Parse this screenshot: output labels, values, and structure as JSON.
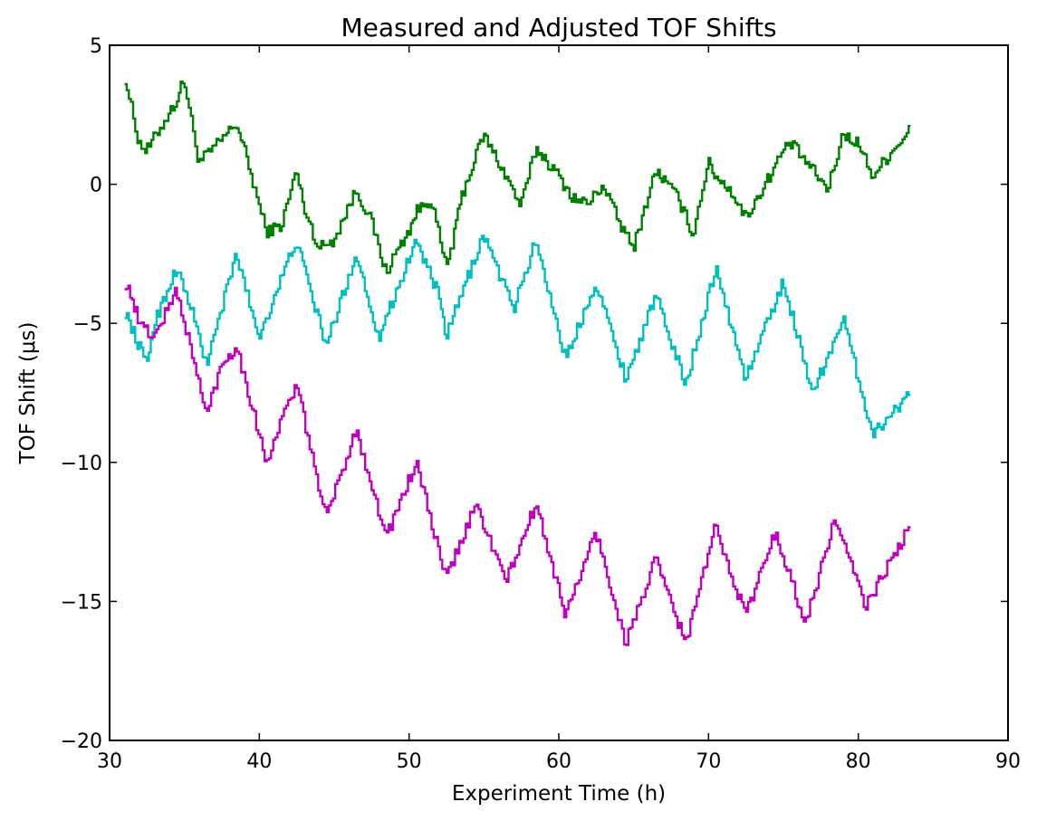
{
  "chart_data": {
    "type": "line",
    "title": "Measured and Adjusted TOF Shifts",
    "xlabel": "Experiment Time (h)",
    "ylabel": "TOF Shift (μs)",
    "xlim": [
      30,
      90
    ],
    "ylim": [
      -20,
      5
    ],
    "xticks": [
      30,
      40,
      50,
      60,
      70,
      80,
      90
    ],
    "yticks": [
      5,
      0,
      -5,
      -10,
      -15,
      -20
    ],
    "xtick_labels": [
      "30",
      "40",
      "50",
      "60",
      "70",
      "80",
      "90"
    ],
    "ytick_labels": [
      "5",
      "0",
      "−5",
      "−10",
      "−15",
      "−20"
    ],
    "grid": false,
    "legend": "none",
    "series": [
      {
        "color": "#008000",
        "points": [
          [
            31,
            4.0
          ],
          [
            32,
            1.5
          ],
          [
            32.5,
            1.2
          ],
          [
            34.5,
            3.0
          ],
          [
            35,
            3.8
          ],
          [
            36,
            0.8
          ],
          [
            37,
            1.3
          ],
          [
            38.5,
            2.2
          ],
          [
            39,
            1.3
          ],
          [
            40.5,
            -1.7
          ],
          [
            41.5,
            -1.5
          ],
          [
            42.5,
            0.5
          ],
          [
            43,
            -0.8
          ],
          [
            44,
            -2.3
          ],
          [
            45,
            -2.0
          ],
          [
            46,
            -0.8
          ],
          [
            46.5,
            -0.2
          ],
          [
            47.5,
            -1.3
          ],
          [
            48.5,
            -3.2
          ],
          [
            49,
            -2.6
          ],
          [
            50,
            -1.7
          ],
          [
            50.5,
            -1.0
          ],
          [
            51.5,
            -0.5
          ],
          [
            52.5,
            -3.0
          ],
          [
            53,
            -2.0
          ],
          [
            53.5,
            -0.5
          ],
          [
            55,
            1.8
          ],
          [
            56.5,
            0.3
          ],
          [
            57.5,
            -0.8
          ],
          [
            58.5,
            1.3
          ],
          [
            59,
            1.0
          ],
          [
            60,
            0.3
          ],
          [
            61,
            -0.5
          ],
          [
            62,
            -0.7
          ],
          [
            63,
            0.0
          ],
          [
            64,
            -1.3
          ],
          [
            65,
            -2.3
          ],
          [
            66.5,
            0.5
          ],
          [
            67,
            0.2
          ],
          [
            68,
            -0.5
          ],
          [
            69,
            -1.8
          ],
          [
            70,
            0.8
          ],
          [
            70.5,
            0.3
          ],
          [
            71.5,
            -0.2
          ],
          [
            72.5,
            -1.2
          ],
          [
            73.5,
            -0.3
          ],
          [
            75,
            1.2
          ],
          [
            75.5,
            1.5
          ],
          [
            77,
            0.5
          ],
          [
            78,
            -0.2
          ],
          [
            79,
            1.8
          ],
          [
            80,
            1.5
          ],
          [
            81,
            0.3
          ],
          [
            82,
            1.0
          ],
          [
            83.5,
            2.0
          ]
        ]
      },
      {
        "color": "#00BFBF",
        "points": [
          [
            31,
            -4.5
          ],
          [
            32,
            -5.8
          ],
          [
            32.5,
            -6.5
          ],
          [
            33,
            -5.0
          ],
          [
            34.5,
            -3.0
          ],
          [
            35.5,
            -4.5
          ],
          [
            36.5,
            -6.5
          ],
          [
            38.5,
            -2.5
          ],
          [
            40,
            -5.5
          ],
          [
            42.5,
            -2.0
          ],
          [
            43,
            -3.0
          ],
          [
            44.5,
            -5.8
          ],
          [
            46.5,
            -2.5
          ],
          [
            48,
            -5.5
          ],
          [
            50.5,
            -2.0
          ],
          [
            52,
            -4.0
          ],
          [
            52.5,
            -5.5
          ],
          [
            55,
            -1.8
          ],
          [
            57,
            -4.5
          ],
          [
            58.5,
            -2.0
          ],
          [
            60.5,
            -6.3
          ],
          [
            62.5,
            -3.5
          ],
          [
            64.5,
            -7.0
          ],
          [
            66.5,
            -4.0
          ],
          [
            68.5,
            -7.2
          ],
          [
            70.5,
            -3.0
          ],
          [
            72.5,
            -7.0
          ],
          [
            75,
            -3.5
          ],
          [
            77,
            -7.5
          ],
          [
            79,
            -4.8
          ],
          [
            81,
            -9.0
          ],
          [
            83.5,
            -7.5
          ]
        ]
      },
      {
        "color": "#BF00BF",
        "points": [
          [
            31,
            -3.5
          ],
          [
            31.5,
            -4.0
          ],
          [
            32,
            -5.0
          ],
          [
            33,
            -5.5
          ],
          [
            34.5,
            -3.8
          ],
          [
            35.5,
            -6.0
          ],
          [
            36.5,
            -8.3
          ],
          [
            37.5,
            -6.5
          ],
          [
            38.5,
            -5.8
          ],
          [
            40.5,
            -10.0
          ],
          [
            41.5,
            -8.5
          ],
          [
            42.5,
            -7.2
          ],
          [
            44.5,
            -12.0
          ],
          [
            46.5,
            -8.8
          ],
          [
            48.5,
            -12.7
          ],
          [
            50.5,
            -10.0
          ],
          [
            52.5,
            -14.2
          ],
          [
            54.5,
            -11.5
          ],
          [
            56.5,
            -14.3
          ],
          [
            58.5,
            -11.5
          ],
          [
            60.5,
            -15.5
          ],
          [
            62.5,
            -12.5
          ],
          [
            64.5,
            -16.5
          ],
          [
            66.5,
            -13.5
          ],
          [
            68.5,
            -16.5
          ],
          [
            70.5,
            -12.3
          ],
          [
            72.5,
            -15.5
          ],
          [
            74.5,
            -12.5
          ],
          [
            76.5,
            -15.8
          ],
          [
            78.5,
            -12.0
          ],
          [
            80.5,
            -15.2
          ],
          [
            83.5,
            -12.3
          ]
        ]
      }
    ]
  }
}
